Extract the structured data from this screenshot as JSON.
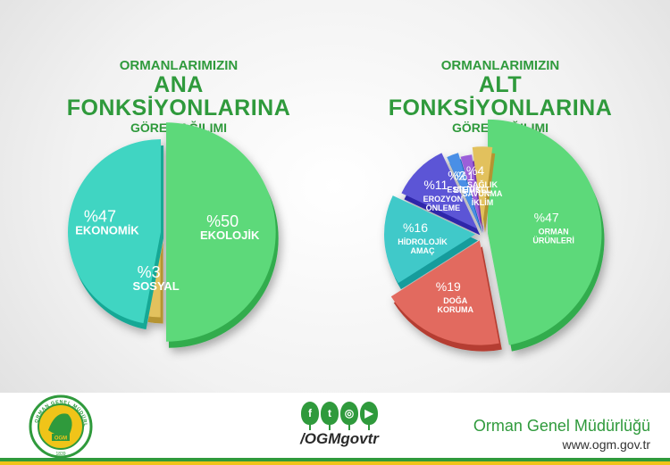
{
  "chart_data": [
    {
      "type": "pie",
      "title_line1": "ORMANLARIMIZIN",
      "title_line2": "ANA FONKSİYONLARINA",
      "title_line3": "GÖRE DAĞILIMI",
      "slices": [
        {
          "pct_label": "%50",
          "label": "EKOLOJİK",
          "value": 50,
          "color": "#5dd97a"
        },
        {
          "pct_label": "%3",
          "label": "SOSYAL",
          "value": 3,
          "color": "#e2c15d"
        },
        {
          "pct_label": "%47",
          "label": "EKONOMİK",
          "value": 47,
          "color": "#3fd5c2"
        }
      ]
    },
    {
      "type": "pie",
      "title_line1": "ORMANLARIMIZIN",
      "title_line2": "ALT FONKSİYONLARINA",
      "title_line3": "GÖRE DAĞILIMI",
      "slices": [
        {
          "pct_label": "%47",
          "label": "ORMAN ÜRÜNLERİ",
          "value": 47,
          "color": "#5dd97a"
        },
        {
          "pct_label": "%19",
          "label": "DOĞA KORUMA",
          "value": 19,
          "color": "#e26b5e"
        },
        {
          "pct_label": "%16",
          "label": "HİDROLOJİK AMAÇ",
          "value": 16,
          "color": "#3fc9c9"
        },
        {
          "pct_label": "%11",
          "label": "EROZYON ÖNLEME",
          "value": 11,
          "color": "#5b54d6"
        },
        {
          "pct_label": "%2",
          "label": "ESTETİK",
          "value": 2,
          "color": "#4a8fe6"
        },
        {
          "pct_label": "%1",
          "label": "BİLİMSEL",
          "value": 1,
          "color": "#9b5ed9"
        },
        {
          "pct_label": "%4",
          "label": "SAĞLIK SAVUNMA İKLİM",
          "value": 4,
          "color": "#e2c15d"
        }
      ]
    }
  ],
  "footer": {
    "logo_text": "ORMAN GENEL MÜDÜRLÜĞÜ",
    "logo_badge": "OGM",
    "logo_year": "1839",
    "social_handle": "/OGMgovtr",
    "org_name": "Orman Genel Müdürlüğü",
    "website": "www.ogm.gov.tr"
  },
  "colors": {
    "brand_green": "#2f9a3c",
    "brand_yellow": "#f0c419"
  },
  "icons": [
    "facebook-icon",
    "twitter-icon",
    "instagram-icon",
    "youtube-icon"
  ]
}
